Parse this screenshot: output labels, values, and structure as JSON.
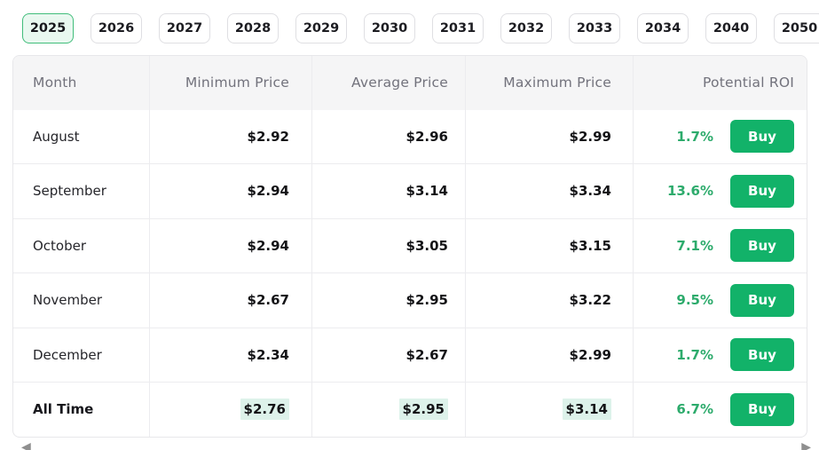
{
  "year_tabs": {
    "selected": "2025",
    "items": [
      {
        "label": "2025",
        "selected": true
      },
      {
        "label": "2026",
        "selected": false
      },
      {
        "label": "2027",
        "selected": false
      },
      {
        "label": "2028",
        "selected": false
      },
      {
        "label": "2029",
        "selected": false
      },
      {
        "label": "2030",
        "selected": false
      },
      {
        "label": "2031",
        "selected": false
      },
      {
        "label": "2032",
        "selected": false
      },
      {
        "label": "2033",
        "selected": false
      },
      {
        "label": "2034",
        "selected": false
      },
      {
        "label": "2040",
        "selected": false
      },
      {
        "label": "2050",
        "selected": false
      }
    ]
  },
  "table": {
    "columns": [
      "Month",
      "Minimum Price",
      "Average Price",
      "Maximum Price",
      "Potential ROI"
    ],
    "buy_label": "Buy",
    "rows": [
      {
        "month": "August",
        "min": "$2.92",
        "avg": "$2.96",
        "max": "$2.99",
        "roi": "1.7%",
        "highlight": false
      },
      {
        "month": "September",
        "min": "$2.94",
        "avg": "$3.14",
        "max": "$3.34",
        "roi": "13.6%",
        "highlight": false
      },
      {
        "month": "October",
        "min": "$2.94",
        "avg": "$3.05",
        "max": "$3.15",
        "roi": "7.1%",
        "highlight": false
      },
      {
        "month": "November",
        "min": "$2.67",
        "avg": "$2.95",
        "max": "$3.22",
        "roi": "9.5%",
        "highlight": false
      },
      {
        "month": "December",
        "min": "$2.34",
        "avg": "$2.67",
        "max": "$2.99",
        "roi": "1.7%",
        "highlight": false
      },
      {
        "month": "All Time",
        "min": "$2.76",
        "avg": "$2.95",
        "max": "$3.14",
        "roi": "6.7%",
        "highlight": true
      }
    ]
  },
  "scrollbar": {
    "left_icon": "◀",
    "right_icon": "▶"
  },
  "colors": {
    "accent_green": "#12b269",
    "roi_green": "#2dab6c",
    "selected_tab_bg": "#e9f8f0",
    "selected_tab_border": "#41bd7b",
    "highlight_bg": "#ddf2ea",
    "header_bg": "#f5f5f6",
    "header_text": "#72727c",
    "table_border": "#e7e7ea"
  }
}
